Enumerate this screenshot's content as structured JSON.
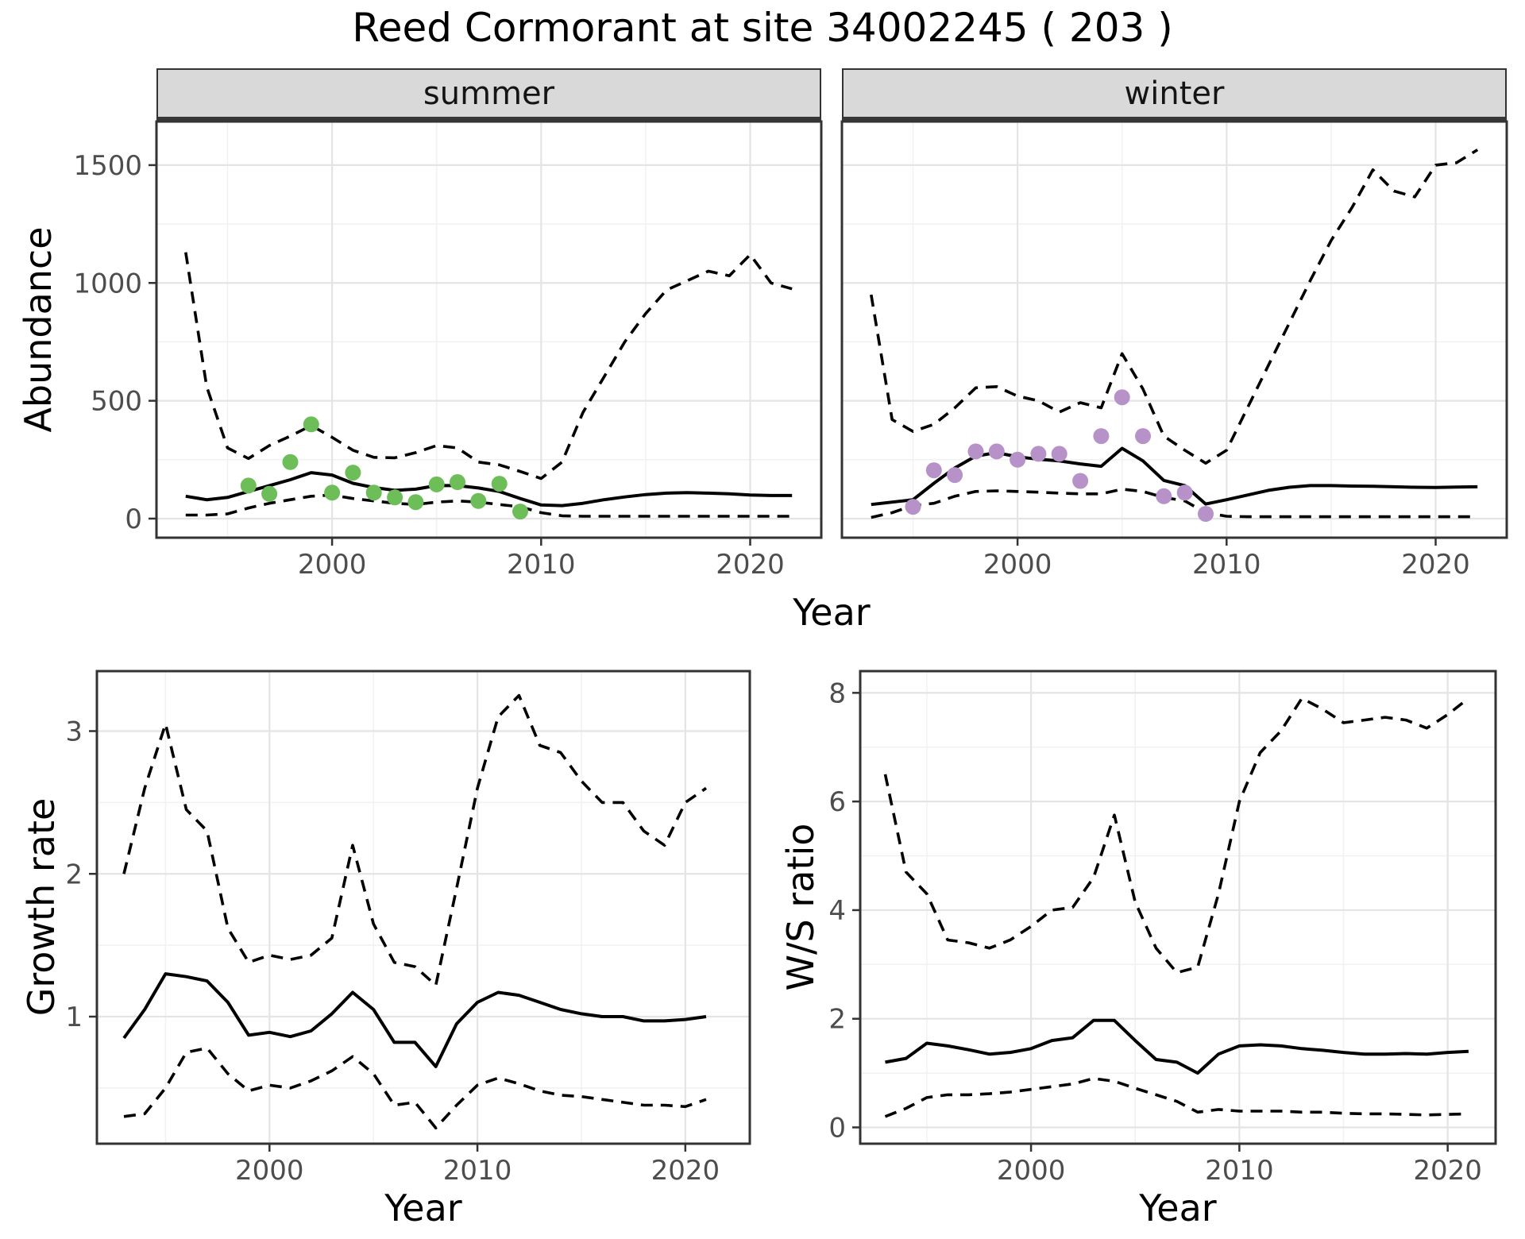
{
  "title": "Reed Cormorant at site 34002245 ( 203 )",
  "colors": {
    "summer_points": "#6dbe59",
    "winter_points": "#b692c8",
    "line": "#000000",
    "grid_major": "#e4e4e4",
    "grid_minor": "#f1f1f1",
    "strip_fill": "#d9d9d9",
    "panel_border": "#333333",
    "tick_text": "#4d4d4d"
  },
  "chart_data": [
    {
      "id": "abundance-summer",
      "type": "line",
      "title": "summer",
      "xlabel": "Year",
      "ylabel": "Abundance",
      "legend": "none",
      "grid": true,
      "x": [
        1993,
        1994,
        1995,
        1996,
        1997,
        1998,
        1999,
        2000,
        2001,
        2002,
        2003,
        2004,
        2005,
        2006,
        2007,
        2008,
        2009,
        2010,
        2011,
        2012,
        2013,
        2014,
        2015,
        2016,
        2017,
        2018,
        2019,
        2020,
        2021,
        2022
      ],
      "series": [
        {
          "name": "ci-upper",
          "style": "dashed",
          "values": [
            1130,
            560,
            300,
            255,
            310,
            350,
            395,
            345,
            290,
            260,
            258,
            280,
            310,
            300,
            240,
            228,
            200,
            170,
            240,
            450,
            600,
            750,
            870,
            970,
            1010,
            1050,
            1030,
            1120,
            1000,
            975
          ]
        },
        {
          "name": "ci-lower",
          "style": "dashed",
          "values": [
            15,
            15,
            20,
            45,
            65,
            80,
            95,
            100,
            85,
            75,
            65,
            60,
            70,
            75,
            70,
            60,
            50,
            25,
            12,
            10,
            10,
            10,
            10,
            10,
            10,
            10,
            10,
            10,
            10,
            10
          ]
        },
        {
          "name": "median",
          "style": "solid",
          "values": [
            95,
            80,
            90,
            115,
            140,
            165,
            195,
            185,
            150,
            132,
            120,
            125,
            140,
            140,
            130,
            115,
            85,
            58,
            55,
            65,
            80,
            92,
            102,
            108,
            110,
            108,
            105,
            100,
            98,
            98
          ]
        }
      ],
      "points": {
        "name": "summer-counts",
        "color": "#6dbe59",
        "x": [
          1996,
          1997,
          1998,
          1999,
          2000,
          2001,
          2002,
          2003,
          2004,
          2005,
          2006,
          2007,
          2008,
          2009
        ],
        "y": [
          140,
          105,
          240,
          400,
          110,
          195,
          110,
          90,
          70,
          145,
          155,
          75,
          148,
          30
        ]
      },
      "xlim": [
        1991.6,
        2023.4
      ],
      "ylim": [
        -81,
        1685
      ],
      "xticks": [
        2000,
        2010,
        2020
      ],
      "xminor": [
        1995,
        2005,
        2015
      ],
      "yticks": [
        0,
        500,
        1000,
        1500
      ],
      "yminor": [
        250,
        750,
        1250
      ]
    },
    {
      "id": "abundance-winter",
      "type": "line",
      "title": "winter",
      "xlabel": "Year",
      "ylabel": "Abundance",
      "legend": "none",
      "grid": true,
      "x": [
        1993,
        1994,
        1995,
        1996,
        1997,
        1998,
        1999,
        2000,
        2001,
        2002,
        2003,
        2004,
        2005,
        2006,
        2007,
        2008,
        2009,
        2010,
        2011,
        2012,
        2013,
        2014,
        2015,
        2016,
        2017,
        2018,
        2019,
        2020,
        2021,
        2022
      ],
      "series": [
        {
          "name": "ci-upper",
          "style": "dashed",
          "values": [
            950,
            420,
            370,
            400,
            470,
            555,
            560,
            520,
            500,
            452,
            492,
            470,
            700,
            550,
            350,
            290,
            235,
            290,
            470,
            650,
            830,
            1010,
            1180,
            1320,
            1480,
            1390,
            1365,
            1500,
            1510,
            1565
          ]
        },
        {
          "name": "ci-lower",
          "style": "dashed",
          "values": [
            5,
            25,
            55,
            65,
            95,
            115,
            118,
            115,
            112,
            108,
            105,
            105,
            125,
            115,
            90,
            75,
            25,
            10,
            8,
            8,
            8,
            8,
            8,
            8,
            8,
            8,
            8,
            8,
            8,
            8
          ]
        },
        {
          "name": "median",
          "style": "solid",
          "values": [
            60,
            70,
            80,
            150,
            215,
            265,
            280,
            262,
            252,
            245,
            232,
            222,
            298,
            245,
            162,
            140,
            62,
            80,
            100,
            120,
            133,
            140,
            140,
            138,
            137,
            135,
            133,
            132,
            134,
            135
          ]
        }
      ],
      "points": {
        "name": "winter-counts",
        "color": "#b692c8",
        "x": [
          1995,
          1996,
          1997,
          1998,
          1999,
          2000,
          2001,
          2002,
          2003,
          2004,
          2005,
          2006,
          2007,
          2008,
          2009
        ],
        "y": [
          50,
          205,
          185,
          285,
          285,
          250,
          275,
          275,
          160,
          350,
          515,
          350,
          95,
          110,
          20
        ]
      },
      "xlim": [
        1991.6,
        2023.4
      ],
      "ylim": [
        -81,
        1685
      ],
      "xticks": [
        2000,
        2010,
        2020
      ],
      "xminor": [
        1995,
        2005,
        2015
      ],
      "yticks": [],
      "yminor": [
        250,
        750,
        1250
      ]
    },
    {
      "id": "growth-rate",
      "type": "line",
      "title": "",
      "xlabel": "Year",
      "ylabel": "Growth rate",
      "legend": "none",
      "grid": true,
      "x": [
        1993,
        1994,
        1995,
        1996,
        1997,
        1998,
        1999,
        2000,
        2001,
        2002,
        2003,
        2004,
        2005,
        2006,
        2007,
        2008,
        2009,
        2010,
        2011,
        2012,
        2013,
        2014,
        2015,
        2016,
        2017,
        2018,
        2019,
        2020,
        2021
      ],
      "series": [
        {
          "name": "ci-upper",
          "style": "dashed",
          "values": [
            2.0,
            2.6,
            3.05,
            2.45,
            2.3,
            1.62,
            1.38,
            1.43,
            1.4,
            1.43,
            1.55,
            2.2,
            1.65,
            1.38,
            1.35,
            1.22,
            1.9,
            2.6,
            3.1,
            3.25,
            2.9,
            2.85,
            2.65,
            2.5,
            2.5,
            2.3,
            2.2,
            2.5,
            2.6
          ]
        },
        {
          "name": "ci-lower",
          "style": "dashed",
          "values": [
            0.3,
            0.32,
            0.5,
            0.75,
            0.78,
            0.6,
            0.48,
            0.52,
            0.5,
            0.55,
            0.62,
            0.72,
            0.6,
            0.38,
            0.4,
            0.22,
            0.38,
            0.52,
            0.57,
            0.53,
            0.48,
            0.45,
            0.44,
            0.42,
            0.4,
            0.38,
            0.38,
            0.37,
            0.42
          ]
        },
        {
          "name": "median",
          "style": "solid",
          "values": [
            0.85,
            1.05,
            1.3,
            1.28,
            1.25,
            1.1,
            0.87,
            0.89,
            0.86,
            0.9,
            1.02,
            1.17,
            1.05,
            0.82,
            0.82,
            0.65,
            0.95,
            1.1,
            1.17,
            1.15,
            1.1,
            1.05,
            1.02,
            1.0,
            1.0,
            0.97,
            0.97,
            0.98,
            1.0
          ]
        }
      ],
      "xlim": [
        1991.7,
        2023.1
      ],
      "ylim": [
        0.11,
        3.42
      ],
      "xticks": [
        2000,
        2010,
        2020
      ],
      "xminor": [
        1995,
        2005,
        2015
      ],
      "yticks": [
        1,
        2,
        3
      ],
      "yminor": [
        0.5,
        1.5,
        2.5
      ]
    },
    {
      "id": "ws-ratio",
      "type": "line",
      "title": "",
      "xlabel": "Year",
      "ylabel": "W/S ratio",
      "legend": "none",
      "grid": true,
      "x": [
        1993,
        1994,
        1995,
        1996,
        1997,
        1998,
        1999,
        2000,
        2001,
        2002,
        2003,
        2004,
        2005,
        2006,
        2007,
        2008,
        2009,
        2010,
        2011,
        2012,
        2013,
        2014,
        2015,
        2016,
        2017,
        2018,
        2019,
        2020,
        2021
      ],
      "series": [
        {
          "name": "ci-upper",
          "style": "dashed",
          "values": [
            6.5,
            4.7,
            4.3,
            3.45,
            3.4,
            3.3,
            3.45,
            3.7,
            4.0,
            4.05,
            4.6,
            5.75,
            4.15,
            3.3,
            2.85,
            2.95,
            4.3,
            6.0,
            6.9,
            7.3,
            7.9,
            7.7,
            7.45,
            7.5,
            7.55,
            7.5,
            7.35,
            7.6,
            7.9
          ]
        },
        {
          "name": "ci-lower",
          "style": "dashed",
          "values": [
            0.2,
            0.35,
            0.55,
            0.6,
            0.6,
            0.62,
            0.65,
            0.7,
            0.75,
            0.8,
            0.9,
            0.85,
            0.72,
            0.6,
            0.48,
            0.28,
            0.33,
            0.3,
            0.3,
            0.3,
            0.28,
            0.28,
            0.26,
            0.25,
            0.25,
            0.24,
            0.23,
            0.24,
            0.25
          ]
        },
        {
          "name": "median",
          "style": "solid",
          "values": [
            1.2,
            1.27,
            1.55,
            1.5,
            1.43,
            1.35,
            1.38,
            1.45,
            1.6,
            1.65,
            1.97,
            1.97,
            1.6,
            1.25,
            1.2,
            1.0,
            1.35,
            1.5,
            1.52,
            1.5,
            1.45,
            1.42,
            1.38,
            1.35,
            1.35,
            1.36,
            1.35,
            1.38,
            1.4
          ]
        }
      ],
      "xlim": [
        1991.8,
        2022.3
      ],
      "ylim": [
        -0.3,
        8.4
      ],
      "xticks": [
        2000,
        2010,
        2020
      ],
      "xminor": [
        1995,
        2005,
        2015
      ],
      "yticks": [
        0,
        2,
        4,
        6,
        8
      ],
      "yminor": [
        1,
        3,
        5,
        7
      ]
    }
  ]
}
